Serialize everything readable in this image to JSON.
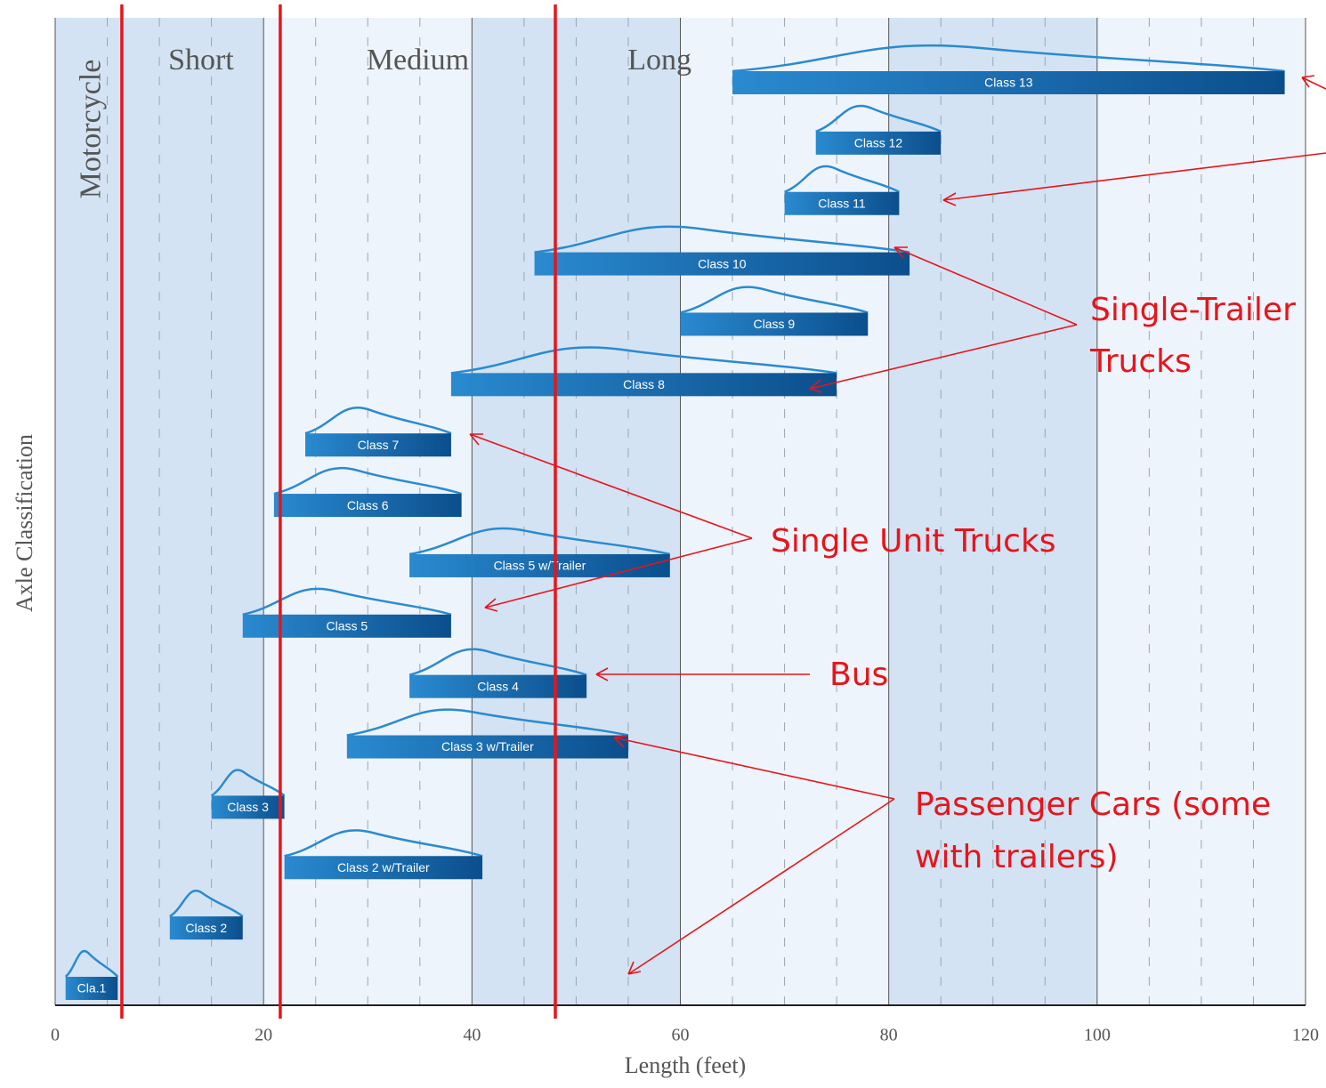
{
  "chart_data": {
    "type": "range-bar",
    "xlabel": "Length (feet)",
    "ylabel": "Axle Classification",
    "xlim": [
      0,
      120
    ],
    "xticks": [
      0,
      20,
      40,
      60,
      80,
      100,
      120
    ],
    "minor_step": 5,
    "grid": true,
    "bars": [
      {
        "label": "Class 13",
        "start": 65,
        "end": 118
      },
      {
        "label": "Class 12",
        "start": 73,
        "end": 85
      },
      {
        "label": "Class 11",
        "start": 70,
        "end": 81
      },
      {
        "label": "Class 10",
        "start": 46,
        "end": 82
      },
      {
        "label": "Class 9",
        "start": 60,
        "end": 78
      },
      {
        "label": "Class 8",
        "start": 38,
        "end": 75
      },
      {
        "label": "Class 7",
        "start": 24,
        "end": 38
      },
      {
        "label": "Class 6",
        "start": 21,
        "end": 39
      },
      {
        "label": "Class 5 w/Trailer",
        "start": 34,
        "end": 59
      },
      {
        "label": "Class 5",
        "start": 18,
        "end": 38
      },
      {
        "label": "Class 4",
        "start": 34,
        "end": 51
      },
      {
        "label": "Class 3 w/Trailer",
        "start": 28,
        "end": 55
      },
      {
        "label": "Class 3",
        "start": 15,
        "end": 22
      },
      {
        "label": "Class 2 w/Trailer",
        "start": 22,
        "end": 41
      },
      {
        "label": "Class 2",
        "start": 11,
        "end": 18
      },
      {
        "label": "Cla.1",
        "start": 1,
        "end": 6
      }
    ],
    "boundaries": [
      6.4,
      21.6,
      48
    ],
    "groups": [
      "Motorcycle",
      "Short",
      "Medium",
      "Long"
    ],
    "annotations": [
      "Single-Trailer",
      "Trucks",
      "Single Unit Trucks",
      "Bus",
      "Passenger Cars (some",
      "with trailers)"
    ]
  }
}
